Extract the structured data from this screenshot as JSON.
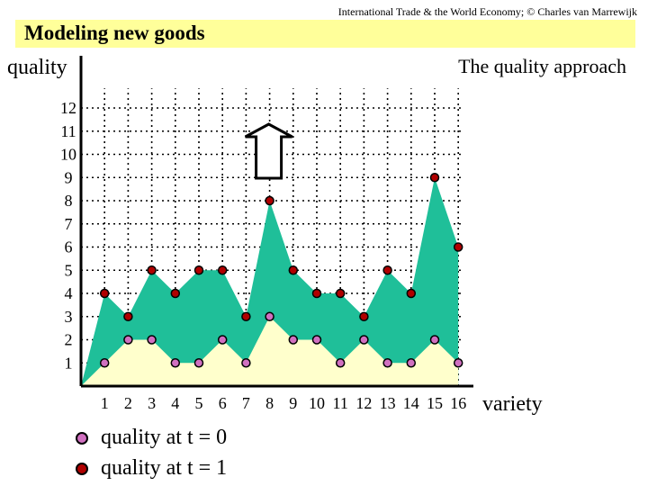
{
  "header": {
    "source_note": "International Trade & the World Economy;  © Charles van Marrewijk",
    "title": "Modeling new goods",
    "subtitle": "The quality approach"
  },
  "colors": {
    "title_bg": "#ffff9a",
    "area_t0": "#ffffcc",
    "area_t1": "#1fbf99",
    "dot_t0": "#d070c0",
    "dot_t1": "#b00000"
  },
  "chart_data": {
    "type": "area",
    "ylabel": "quality",
    "xlabel": "variety",
    "x": [
      1,
      2,
      3,
      4,
      5,
      6,
      7,
      8,
      9,
      10,
      11,
      12,
      13,
      14,
      15,
      16
    ],
    "x_tick_labels": [
      "1",
      "2",
      "3",
      "4",
      "5",
      "6",
      "7",
      "8",
      "9",
      "10",
      "11",
      "12",
      "13",
      "14",
      "15",
      "16"
    ],
    "y_tick_labels": [
      "1",
      "2",
      "3",
      "4",
      "5",
      "6",
      "7",
      "8",
      "9",
      "10",
      "11",
      "12"
    ],
    "xlim": [
      0,
      17
    ],
    "ylim": [
      0,
      13
    ],
    "grid": true,
    "series": [
      {
        "name": "quality at t = 0",
        "values": [
          1,
          2,
          2,
          1,
          1,
          2,
          1,
          3,
          2,
          2,
          1,
          2,
          1,
          1,
          2,
          1
        ]
      },
      {
        "name": "quality at t = 1",
        "values": [
          4,
          3,
          5,
          4,
          5,
          5,
          3,
          8,
          5,
          4,
          4,
          3,
          5,
          4,
          9,
          6
        ]
      }
    ],
    "annotations": [
      {
        "type": "up-arrow",
        "x": 8
      }
    ]
  },
  "legend": {
    "t0_label": "quality at t = 0",
    "t1_label": "quality at t = 1"
  }
}
